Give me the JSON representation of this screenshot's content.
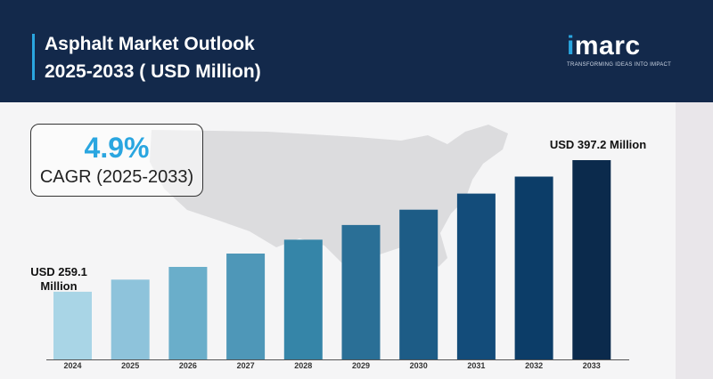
{
  "header": {
    "title_line1": "Asphalt Market Outlook",
    "title_line2": "2025-2033 ( USD Million)",
    "bg_color": "#13294b"
  },
  "logo": {
    "brand": "imarc",
    "tagline": "TRANSFORMING IDEAS INTO IMPACT",
    "icon": "imarc-logo"
  },
  "cagr": {
    "value": "4.9%",
    "label": "CAGR (2025-2033)",
    "value_color": "#2aa6e0"
  },
  "chart_data": {
    "type": "bar",
    "title": "",
    "xlabel": "",
    "ylabel": "",
    "categories": [
      "2024",
      "2025",
      "2026",
      "2027",
      "2028",
      "2029",
      "2030",
      "2031",
      "2032",
      "2033"
    ],
    "values": [
      259.1,
      271.8,
      285.1,
      299.1,
      313.7,
      329.1,
      345.2,
      362.1,
      379.9,
      397.2
    ],
    "colors": [
      "#a9d5e6",
      "#8ec3db",
      "#6aaeca",
      "#4e97b8",
      "#3585a8",
      "#2a6f96",
      "#1d5c86",
      "#134c7a",
      "#0c3d68",
      "#0b2a4c"
    ],
    "annotations": {
      "first": "USD 259.1 Million",
      "first_line1": "USD 259.1",
      "first_line2": "Million",
      "last": "USD 397.2 Million"
    },
    "ylim": [
      0,
      420
    ],
    "grid": false,
    "legend": "none"
  }
}
